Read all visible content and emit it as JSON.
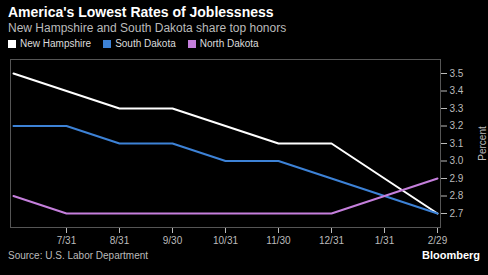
{
  "chart_data": {
    "type": "line",
    "title": "America's Lowest Rates of Joblessness",
    "subtitle": "New Hampshire and South Dakota share top honors",
    "source": "Source: U.S. Labor Department",
    "credit": "Bloomberg",
    "y_label": "Percent",
    "categories": [
      null,
      "7/31",
      "8/31",
      "9/30",
      "10/31",
      "11/30",
      "12/31",
      "1/31",
      "2/29"
    ],
    "series": [
      {
        "name": "New Hampshire",
        "color": "#ffffff",
        "values": [
          3.5,
          3.4,
          3.3,
          3.3,
          3.2,
          3.1,
          3.1,
          2.9,
          2.7
        ]
      },
      {
        "name": "South Dakota",
        "color": "#3d82d6",
        "values": [
          3.2,
          3.2,
          3.1,
          3.1,
          3.0,
          3.0,
          2.9,
          2.8,
          2.7
        ]
      },
      {
        "name": "North Dakota",
        "color": "#c57fdc",
        "values": [
          2.8,
          2.7,
          2.7,
          2.7,
          2.7,
          2.7,
          2.7,
          2.8,
          2.9
        ]
      }
    ],
    "ylim": [
      2.62,
      3.58
    ],
    "yticks": [
      2.7,
      2.8,
      2.9,
      {
        "value": 3,
        "label": "3.0"
      },
      3.1,
      3.2,
      3.3,
      3.4,
      3.5
    ],
    "legend": "top"
  }
}
